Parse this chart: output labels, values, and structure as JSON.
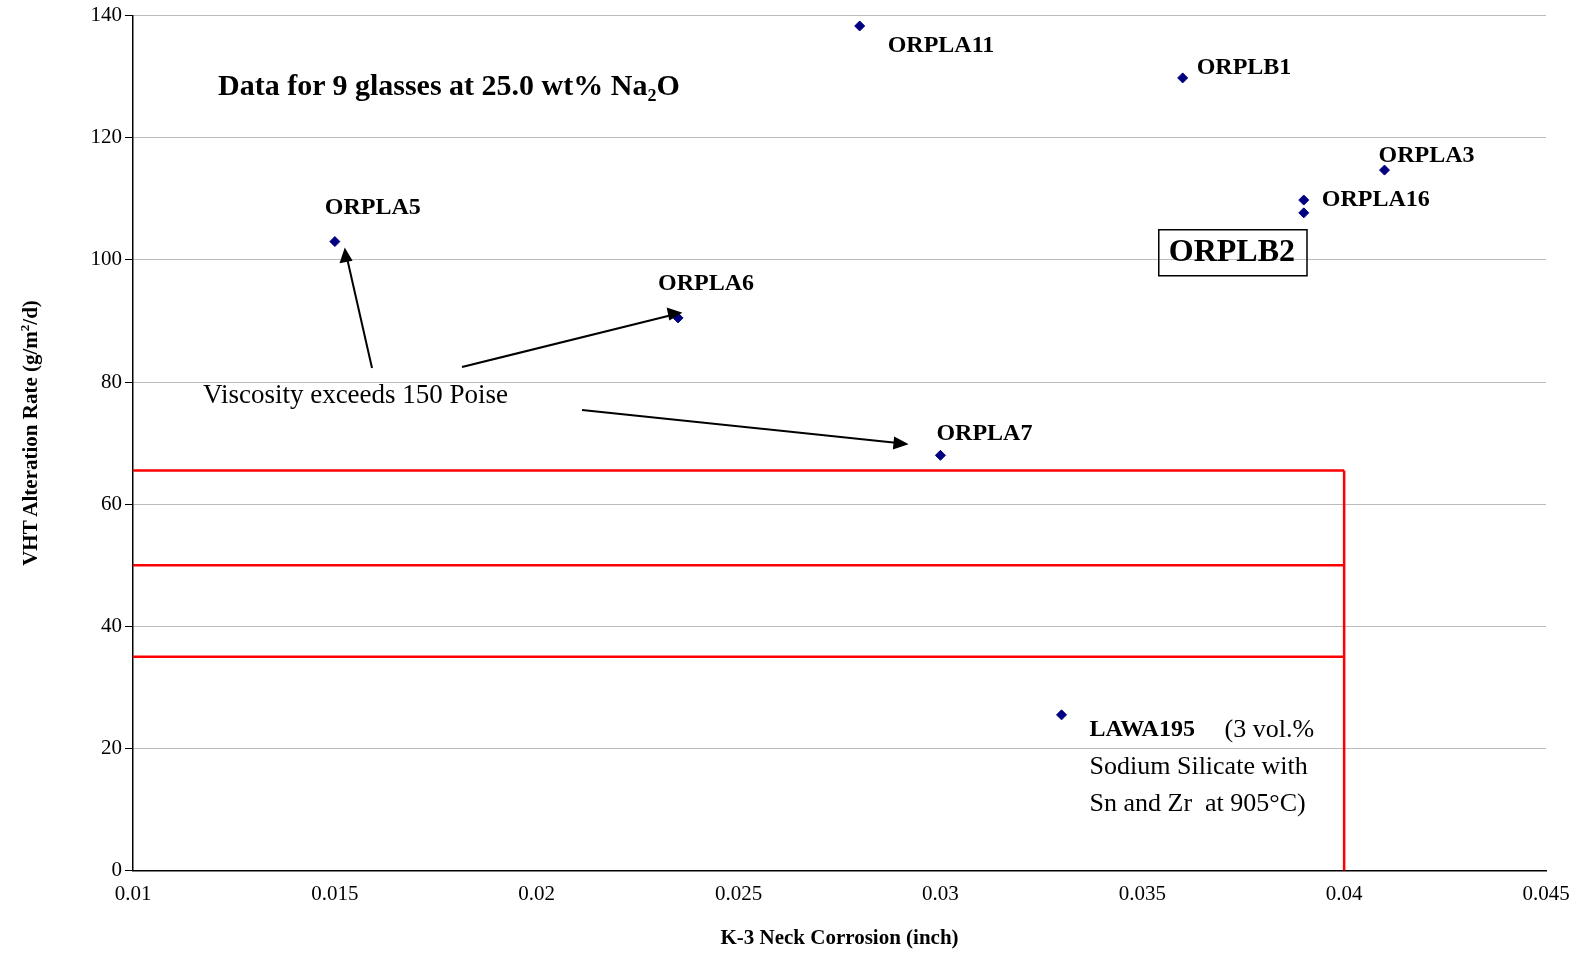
{
  "chart_data": {
    "type": "scatter",
    "title": "Data for 9 glasses at 25.0 wt% Na₂O",
    "xlabel": "K-3 Neck Corrosion (inch)",
    "ylabel": "VHT Alteration Rate (g/m$^{2}$/d)",
    "x": [
      0.015,
      0.0235,
      0.028,
      0.036,
      0.041,
      0.039,
      0.039,
      0.03,
      0.033
    ],
    "series": [
      {
        "color": "#000080",
        "values": [
          103,
          90.5,
          138.3,
          129.8,
          114.7,
          109.8,
          107.7,
          68,
          25.5
        ]
      }
    ],
    "marker": "diamond",
    "grid": "y",
    "xlim": [
      0.01,
      0.045
    ],
    "xticks": [
      0.01,
      0.015,
      0.02,
      0.025,
      0.03,
      0.035,
      0.04,
      0.045
    ],
    "ylim": [
      0,
      140
    ],
    "yticks": [
      0,
      20,
      40,
      60,
      80,
      100,
      120,
      140
    ],
    "ref_lines": [
      {
        "axis": "y",
        "value": 65.5,
        "color": "#ff0000"
      },
      {
        "axis": "y",
        "value": 50,
        "color": "#ff0000"
      },
      {
        "axis": "y",
        "value": 35,
        "color": "#ff0000"
      },
      {
        "axis": "x",
        "value": 0.04,
        "color": "#ff0000"
      }
    ],
    "annotations": [
      {
        "text": "ORPLA5",
        "x": 0.015,
        "y": 103
      },
      {
        "text": "ORPLA6",
        "x": 0.0235,
        "y": 90.5
      },
      {
        "text": "ORPLA11",
        "x": 0.028,
        "y": 138.3
      },
      {
        "text": "ORPLB1",
        "x": 0.036,
        "y": 129.8
      },
      {
        "text": "ORPLA3",
        "x": 0.041,
        "y": 114.7
      },
      {
        "text": "ORPLA16",
        "x": 0.039,
        "y": 109.8
      },
      {
        "text": "ORPLB2",
        "x": 0.039,
        "y": 107.7
      },
      {
        "text": "ORPLA7",
        "x": 0.03,
        "y": 68
      },
      {
        "text": "LAWA195",
        "x": 0.033,
        "y": 25.5
      },
      {
        "text": "Viscosity exceeds 150 Poise",
        "x": 0.0235,
        "y": 90.5
      },
      "(3 vol.% Sodium Silicate with Sn and Zr  at 905°C)"
    ]
  }
}
